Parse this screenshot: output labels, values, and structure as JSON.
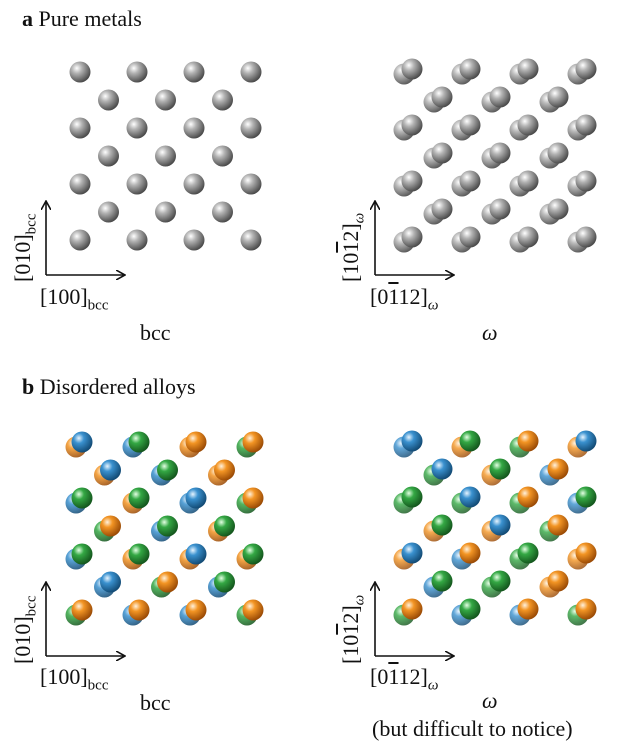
{
  "panel_a": {
    "letter": "a",
    "title": "Pure metals",
    "left_caption": "bcc",
    "right_caption": "ω",
    "bcc_axis_y": "[010]",
    "bcc_axis_y_sub": "bcc",
    "bcc_axis_x": "[100]",
    "bcc_axis_x_sub": "bcc",
    "omega_axis_y_pre": "[10",
    "omega_axis_y_bar": "1",
    "omega_axis_y_post": "2]",
    "omega_axis_y_sub": "ω",
    "omega_axis_x_pre": "[0",
    "omega_axis_x_bar": "1",
    "omega_axis_x_post": "12]",
    "omega_axis_x_sub": "ω"
  },
  "panel_b": {
    "letter": "b",
    "title": "Disordered alloys",
    "left_caption": "bcc",
    "right_caption": "ω",
    "right_note": "(but difficult to notice)",
    "bcc_axis_y": "[010]",
    "bcc_axis_y_sub": "bcc",
    "bcc_axis_x": "[100]",
    "bcc_axis_x_sub": "bcc",
    "omega_axis_y_pre": "[10",
    "omega_axis_y_bar": "1",
    "omega_axis_y_post": "2]",
    "omega_axis_y_sub": "ω",
    "omega_axis_x_pre": "[0",
    "omega_axis_x_bar": "1",
    "omega_axis_x_post": "12]",
    "omega_axis_x_sub": "ω"
  },
  "colors": {
    "metal": "#8a8a8a",
    "blue": "#2b7fb8",
    "orange": "#f08a1c",
    "green": "#2e9a3a",
    "axis": "#111111"
  },
  "atom_sequences": {
    "bcc_alloy": [
      "orange",
      "blue",
      "blue",
      "green",
      "orange",
      "orange",
      "green",
      "orange",
      "blue",
      "green",
      "orange",
      "green",
      "blue",
      "blue",
      "green",
      "orange",
      "blue",
      "green",
      "orange",
      "green",
      "orange",
      "blue",
      "orange",
      "green",
      "green",
      "orange",
      "blue",
      "orange",
      "blue",
      "orange",
      "green",
      "orange"
    ],
    "omega_alloy": [
      "blue",
      "blue",
      "orange",
      "green",
      "green",
      "orange",
      "orange",
      "blue",
      "green",
      "green",
      "green",
      "blue",
      "green",
      "orange",
      "blue",
      "green",
      "orange",
      "blue",
      "blue",
      "orange",
      "green",
      "green",
      "orange",
      "orange",
      "green",
      "orange",
      "blue",
      "green",
      "blue",
      "orange",
      "green",
      "orange",
      "green",
      "blue",
      "orange",
      "green",
      "blue",
      "orange",
      "orange",
      "green",
      "orange",
      "blue",
      "green",
      "orange",
      "blue",
      "green",
      "green",
      "green",
      "orange",
      "orange",
      "blue",
      "orange",
      "green",
      "blue",
      "blue",
      "orange",
      "orange",
      "green",
      "green",
      "blue",
      "orange",
      "orange",
      "blue",
      "green"
    ]
  }
}
